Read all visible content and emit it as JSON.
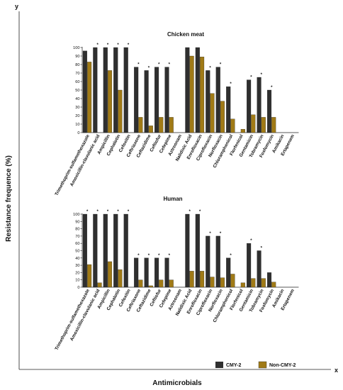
{
  "figure": {
    "y_axis_letter": "y",
    "x_axis_letter": "x",
    "ylabel": "Resistance frequence (%)",
    "xlabel": "Antimicrobials",
    "legend": {
      "position": "bottom-right",
      "cmy2": "CMY-2",
      "noncmy2": "Non-CMY-2"
    },
    "colors": {
      "cmy2": "#2f2f2f",
      "noncmy2": "#a07a16"
    }
  },
  "chart_data": [
    {
      "type": "bar",
      "title": "Chicken meat",
      "ylim": [
        0,
        100
      ],
      "yticks": [
        0,
        10,
        20,
        30,
        40,
        50,
        60,
        70,
        80,
        90,
        100
      ],
      "categories": [
        "Trimethoprim-sulfamethoxazole",
        "Amoxicillin-clavulanic acid",
        "Ampicillin",
        "Cephalotin",
        "Cefoxitin",
        "Ceftriaxone",
        "Ceftazidime",
        "Ceftiofur",
        "Cefepime",
        "Aztreonam",
        "Nalidixic Acid",
        "Enrofloxacin",
        "Ciprofloxacin",
        "Norfloxacin",
        "Chloramphenicol",
        "Florfenicol",
        "Gentamicin",
        "Tobramycin",
        "Fosfomycin",
        "Amikacin",
        "Ertapenem"
      ],
      "series": [
        {
          "name": "CMY-2",
          "values": [
            96,
            100,
            100,
            100,
            100,
            77,
            73,
            77,
            77,
            0,
            100,
            100,
            73,
            77,
            54,
            0,
            62,
            65,
            50,
            0,
            0
          ]
        },
        {
          "name": "Non-CMY-2",
          "values": [
            83,
            0,
            73,
            50,
            0,
            18,
            8,
            18,
            18,
            0,
            90,
            89,
            46,
            37,
            16,
            4,
            21,
            18,
            18,
            0,
            0
          ]
        }
      ],
      "significance": [
        "",
        "*",
        "*",
        "*",
        "*",
        "*",
        "*",
        "*",
        "*",
        "",
        "",
        "",
        "*",
        "*",
        "*",
        "",
        "*",
        "*",
        "*",
        "",
        ""
      ]
    },
    {
      "type": "bar",
      "title": "Human",
      "ylim": [
        0,
        100
      ],
      "yticks": [
        0,
        10,
        20,
        30,
        40,
        50,
        60,
        70,
        80,
        90,
        100
      ],
      "categories": [
        "Trimethoprim-sulfamethoxazole",
        "Amoxicillin-clavulanic acid",
        "Ampicillin",
        "Cephalotin",
        "Cefoxitin",
        "Ceftriaxone",
        "Ceftazidime",
        "Ceftiofur",
        "Cefepime",
        "Aztreonam",
        "Nalidixic Acid",
        "Enrofloxacin",
        "Ciprofloxacin",
        "Norfloxacin",
        "Chloramphenicol",
        "Florfenicol",
        "Gentamicin",
        "Tobramycin",
        "Fosfomycin",
        "Amikacin",
        "Ertapenem"
      ],
      "series": [
        {
          "name": "CMY-2",
          "values": [
            100,
            100,
            100,
            100,
            100,
            40,
            40,
            40,
            40,
            0,
            100,
            100,
            70,
            70,
            40,
            0,
            60,
            50,
            20,
            0,
            0
          ]
        },
        {
          "name": "Non-CMY-2",
          "values": [
            31,
            6,
            35,
            24,
            0,
            10,
            2,
            10,
            10,
            0,
            22,
            22,
            14,
            13,
            18,
            6,
            12,
            12,
            7,
            0,
            0
          ]
        }
      ],
      "significance": [
        "*",
        "*",
        "*",
        "*",
        "*",
        "*",
        "*",
        "*",
        "*",
        "",
        "*",
        "*",
        "*",
        "*",
        "*",
        "",
        "*",
        "*",
        "",
        "",
        ""
      ]
    }
  ]
}
